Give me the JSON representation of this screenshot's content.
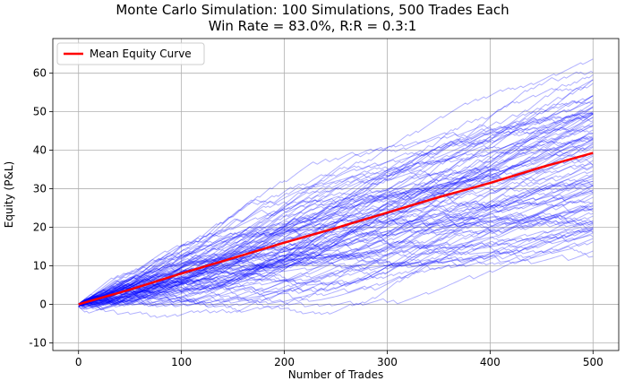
{
  "chart_data": {
    "type": "line",
    "title": "Monte Carlo Simulation: 100 Simulations, 500 Trades Each",
    "subtitle": "Win Rate = 83.0%, R:R = 0.3:1",
    "xlabel": "Number of Trades",
    "ylabel": "Equity (P&L)",
    "xlim": [
      -25,
      525
    ],
    "ylim": [
      -12,
      69
    ],
    "xticks": [
      0,
      100,
      200,
      300,
      400,
      500
    ],
    "yticks": [
      -10,
      0,
      10,
      20,
      30,
      40,
      50,
      60
    ],
    "grid": true,
    "legend_position": "top-left",
    "mean_series": {
      "name": "Mean Equity Curve",
      "color": "#ff0000",
      "x": [
        0,
        50,
        100,
        150,
        200,
        250,
        300,
        350,
        400,
        450,
        500
      ],
      "y": [
        0,
        3.8,
        8.0,
        12.0,
        16.0,
        19.8,
        23.8,
        27.8,
        31.5,
        35.6,
        39.3
      ]
    },
    "simulations": {
      "count": 100,
      "trades_each": 500,
      "color": "#0000ff",
      "final_equity_range": [
        10,
        66
      ]
    }
  }
}
